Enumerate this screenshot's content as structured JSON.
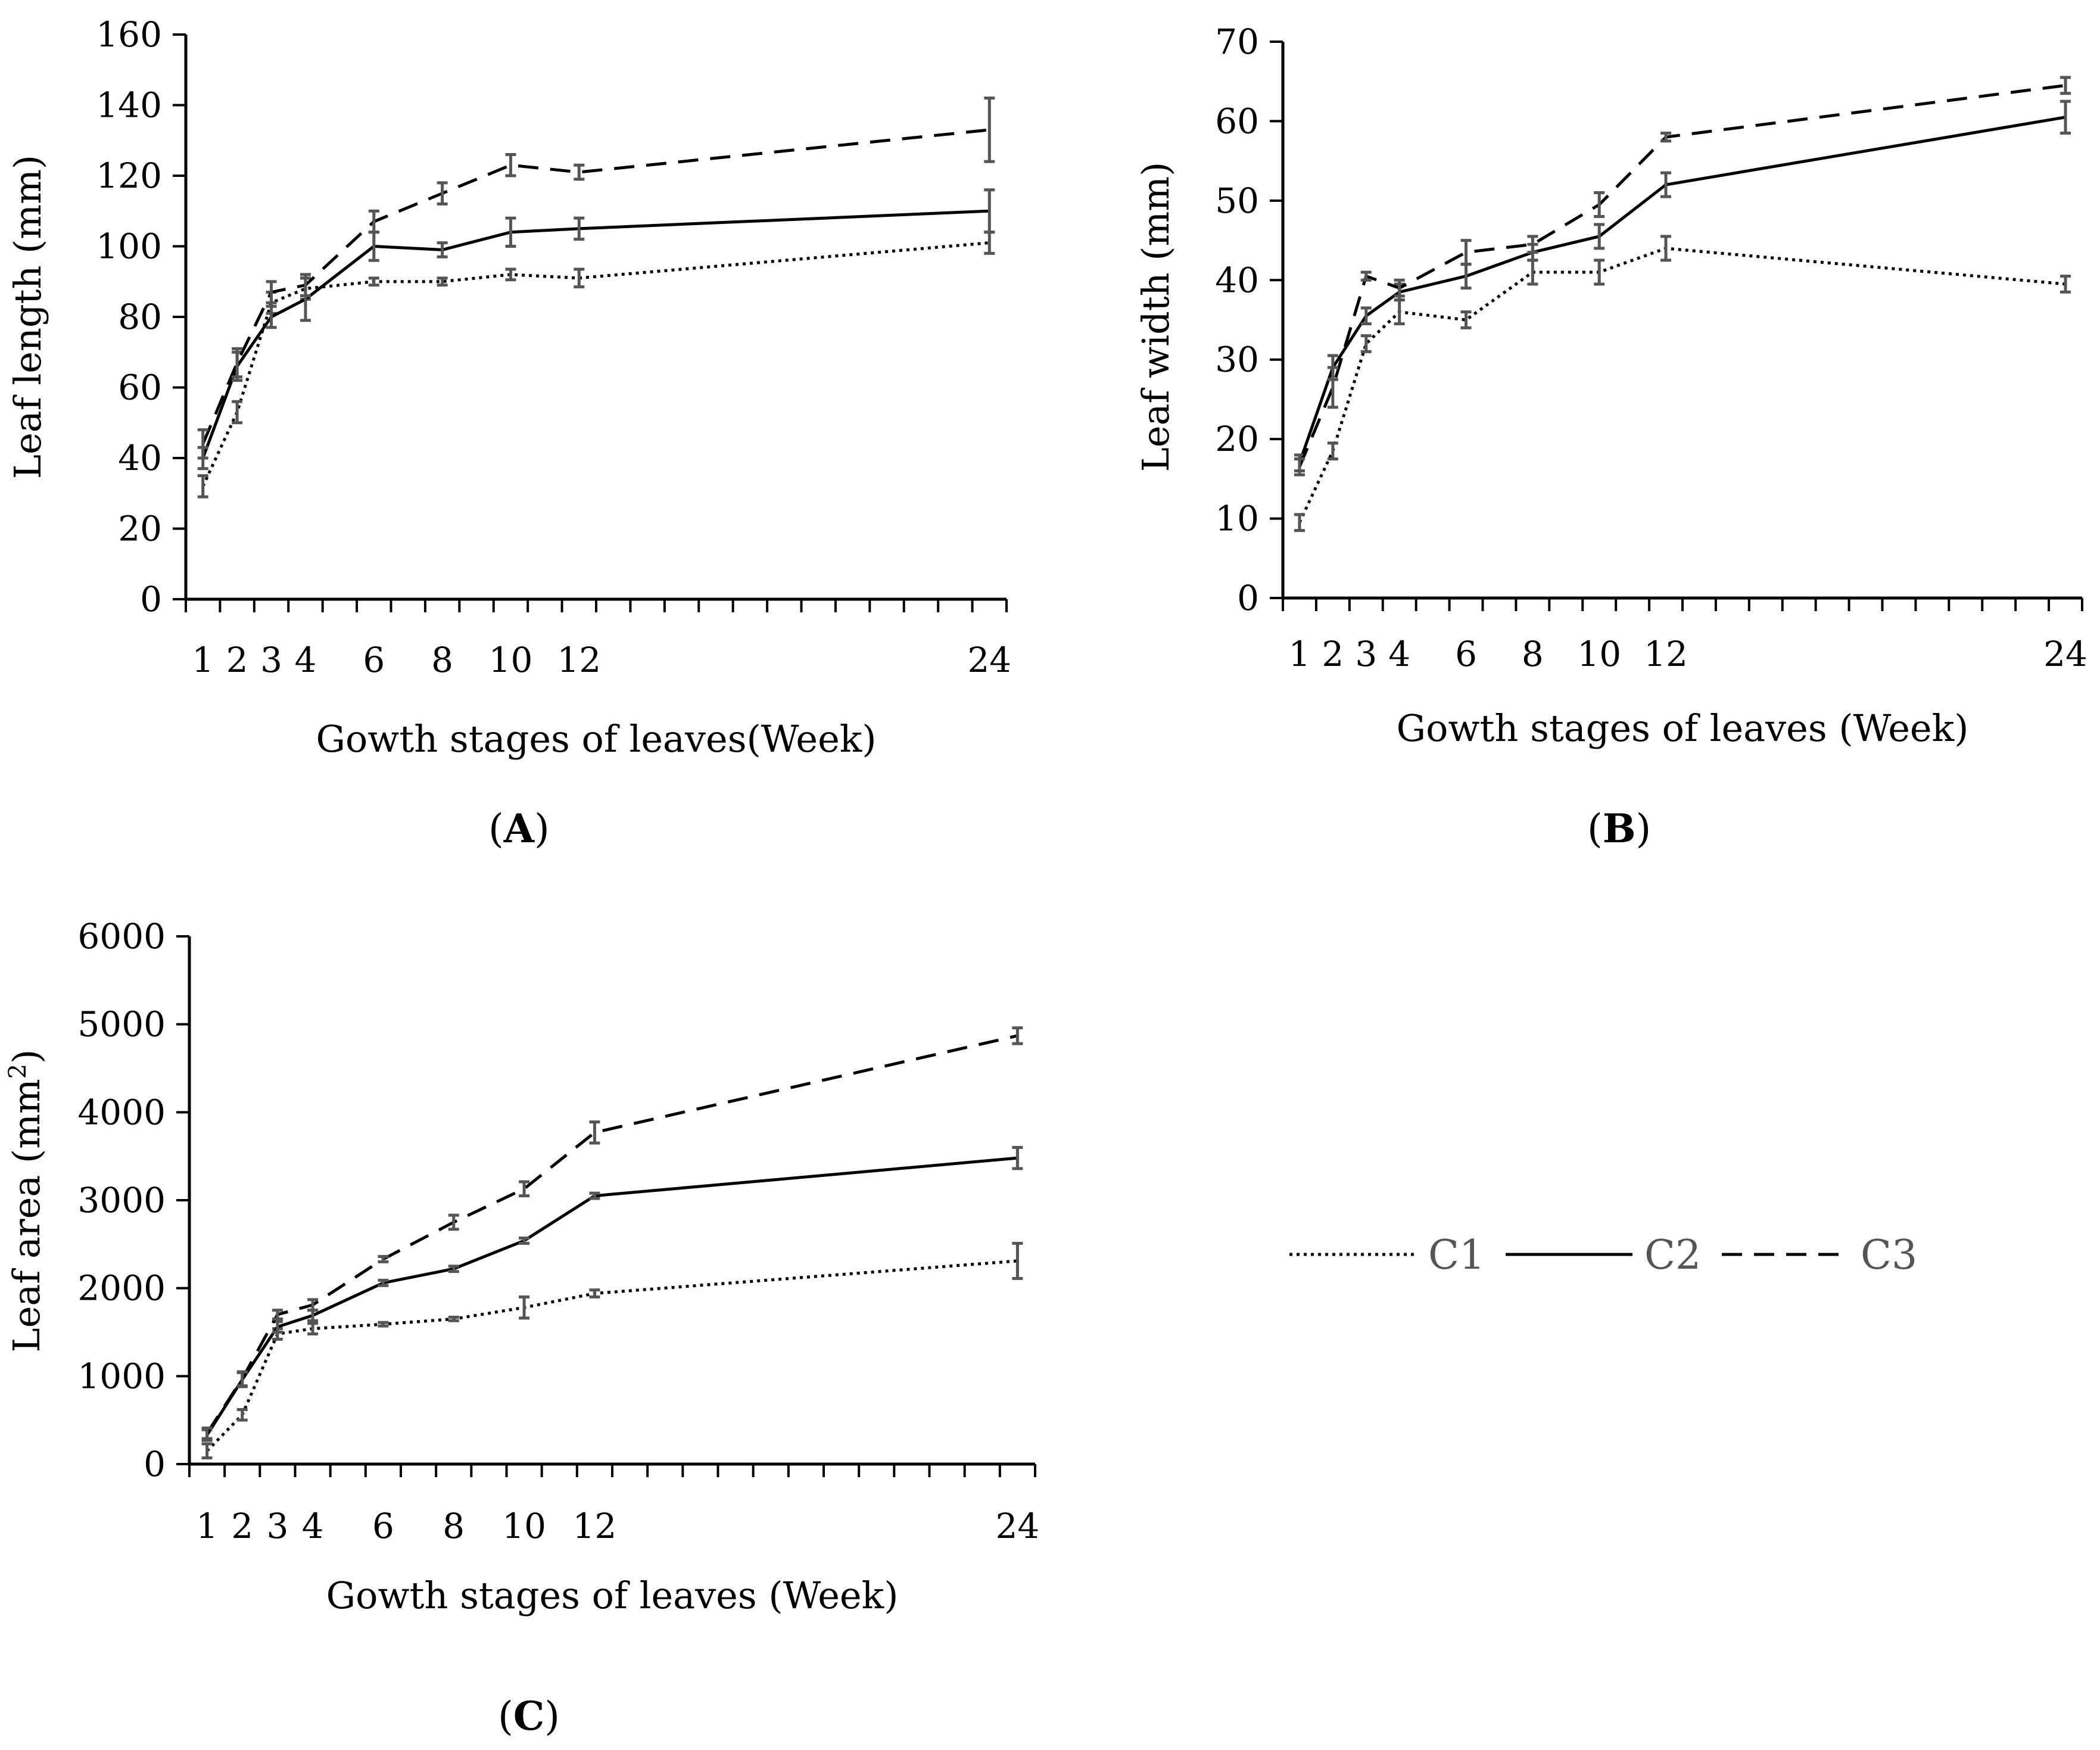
{
  "chart_data": [
    {
      "panel": "A",
      "type": "line",
      "x": [
        1,
        2,
        3,
        4,
        6,
        8,
        10,
        12,
        24
      ],
      "xticklabels": [
        "1",
        "2",
        "3",
        "4",
        "6",
        "8",
        "10",
        "12",
        "24"
      ],
      "xlim": [
        0.5,
        24.5
      ],
      "xlabel": "Gowth stages of leaves(Week)",
      "ylabel": "Leaf length (mm)",
      "ylim": [
        0,
        160
      ],
      "yticks": [
        0,
        20,
        40,
        60,
        80,
        100,
        120,
        140,
        160
      ],
      "series": [
        {
          "name": "C1",
          "style": "dotted",
          "values": [
            32,
            53,
            84,
            88,
            90,
            90,
            92,
            91,
            101
          ],
          "errors": [
            3,
            3,
            3,
            3,
            1,
            1,
            1.5,
            2.5,
            3
          ]
        },
        {
          "name": "C2",
          "style": "solid",
          "values": [
            40,
            66,
            80,
            85,
            100,
            99,
            104,
            105,
            110
          ],
          "errors": [
            3,
            4,
            3,
            6,
            4,
            2,
            4,
            3,
            6
          ]
        },
        {
          "name": "C3",
          "style": "dashed",
          "values": [
            44,
            67,
            87,
            89,
            107,
            115,
            123,
            121,
            133
          ],
          "errors": [
            4,
            4,
            3,
            3,
            3,
            3,
            3,
            2,
            9
          ]
        }
      ]
    },
    {
      "panel": "B",
      "type": "line",
      "x": [
        1,
        2,
        3,
        4,
        6,
        8,
        10,
        12,
        24
      ],
      "xticklabels": [
        "1",
        "2",
        "3",
        "4",
        "6",
        "8",
        "10",
        "12",
        "24"
      ],
      "xlim": [
        0.5,
        24.5
      ],
      "xlabel": "Gowth stages of  leaves (Week)",
      "ylabel": "Leaf width (mm)",
      "ylim": [
        0,
        70
      ],
      "yticks": [
        0,
        10,
        20,
        30,
        40,
        50,
        60,
        70
      ],
      "series": [
        {
          "name": "C1",
          "style": "dotted",
          "values": [
            9.5,
            18.5,
            32,
            36,
            35,
            41,
            41,
            44,
            39.5
          ],
          "errors": [
            1,
            1,
            1,
            1.5,
            1,
            1.5,
            1.5,
            1.5,
            1
          ]
        },
        {
          "name": "C2",
          "style": "solid",
          "values": [
            17,
            29,
            35.5,
            38.5,
            40.5,
            43.5,
            45.5,
            52,
            60.5
          ],
          "errors": [
            1,
            1.5,
            1,
            1,
            1.5,
            1,
            1.5,
            1.5,
            2
          ]
        },
        {
          "name": "C3",
          "style": "dashed",
          "values": [
            16.5,
            26.5,
            40.5,
            39,
            43.5,
            44.5,
            49.5,
            58,
            64.5
          ],
          "errors": [
            1,
            2.5,
            0.5,
            1,
            1.5,
            1,
            1.5,
            0.5,
            1
          ]
        }
      ]
    },
    {
      "panel": "C",
      "type": "line",
      "x": [
        1,
        2,
        3,
        4,
        6,
        8,
        10,
        12,
        24
      ],
      "xticklabels": [
        "1",
        "2",
        "3",
        "4",
        "6",
        "8",
        "10",
        "12",
        "24"
      ],
      "xlim": [
        0.5,
        24.5
      ],
      "xlabel": "Gowth stages of leaves (Week)",
      "ylabel": "Leaf area (mm",
      "ylabel_sup": "2",
      "ylabel_end": ")",
      "ylim": [
        0,
        6000
      ],
      "yticks": [
        0,
        1000,
        2000,
        3000,
        4000,
        5000,
        6000
      ],
      "series": [
        {
          "name": "C1",
          "style": "dotted",
          "values": [
            150,
            560,
            1480,
            1540,
            1590,
            1650,
            1780,
            1940,
            2310
          ],
          "errors": [
            80,
            60,
            60,
            60,
            20,
            20,
            120,
            40,
            200
          ]
        },
        {
          "name": "C2",
          "style": "solid",
          "values": [
            330,
            960,
            1560,
            1690,
            2060,
            2220,
            2540,
            3050,
            3480
          ],
          "errors": [
            60,
            80,
            60,
            60,
            30,
            30,
            30,
            30,
            120
          ]
        },
        {
          "name": "C3",
          "style": "dashed",
          "values": [
            350,
            970,
            1700,
            1810,
            2330,
            2750,
            3130,
            3770,
            4870
          ],
          "errors": [
            60,
            80,
            50,
            60,
            30,
            80,
            80,
            120,
            90
          ]
        }
      ]
    }
  ],
  "captions": {
    "A": "A",
    "B": "B",
    "C": "C"
  },
  "legend": {
    "items": [
      "C1",
      "C2",
      "C3"
    ]
  }
}
